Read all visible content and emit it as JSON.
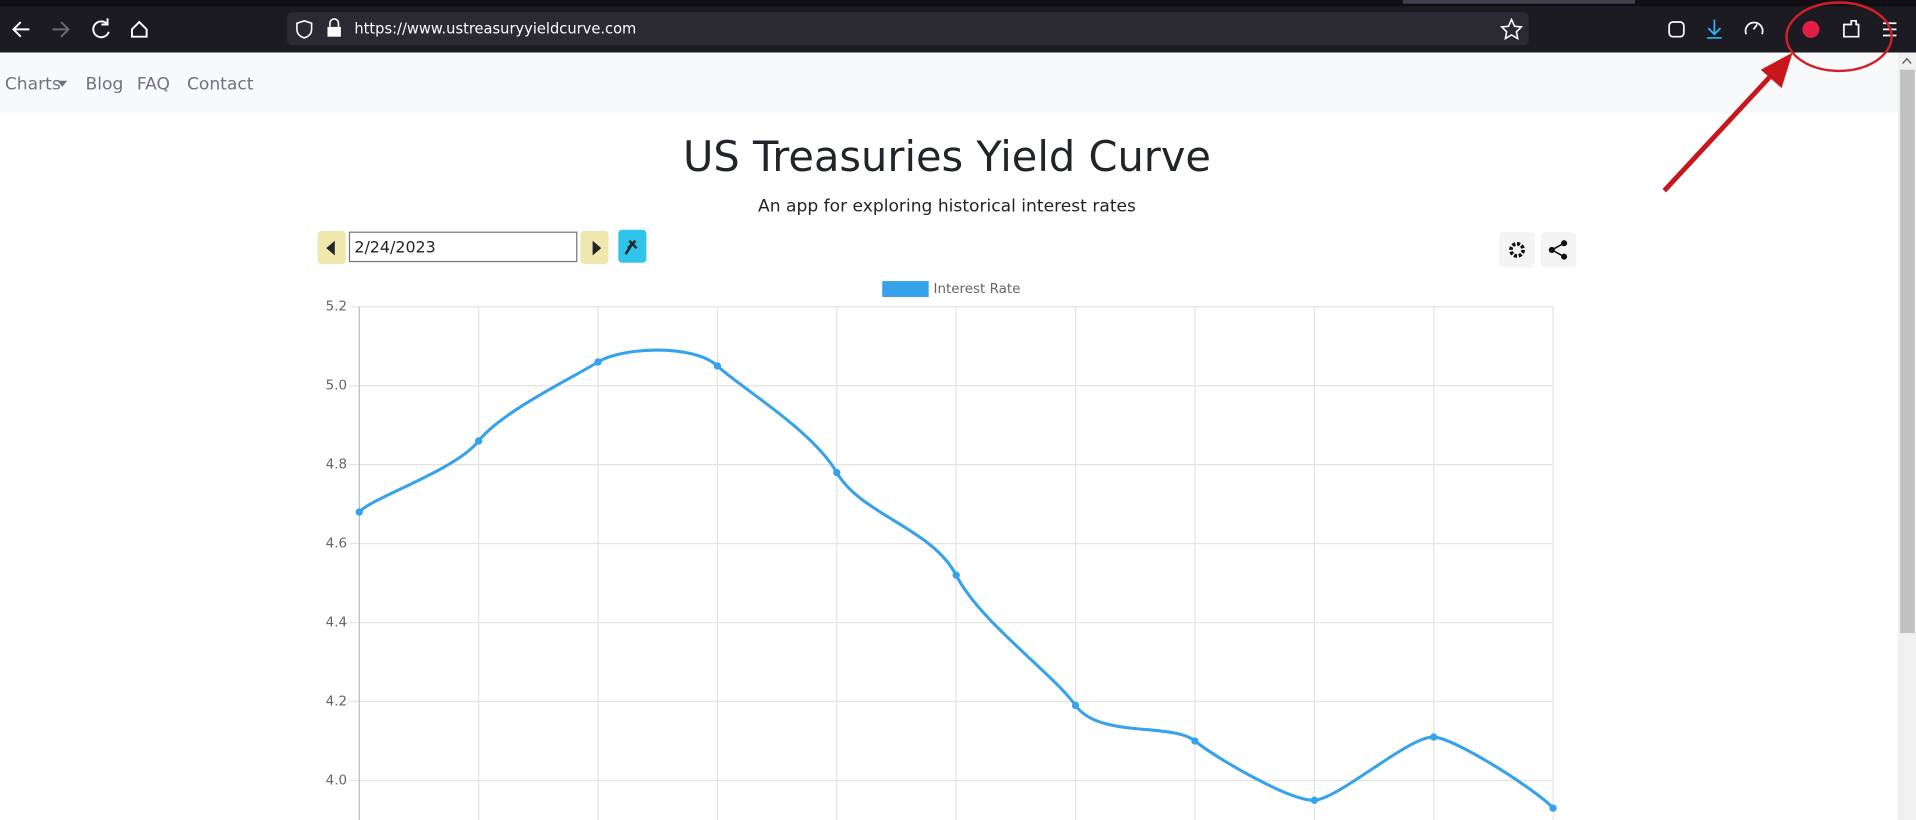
{
  "browser": {
    "url": "https://www.ustreasuryyieldcurve.com"
  },
  "nav": {
    "items": [
      "Charts",
      "Blog",
      "FAQ",
      "Contact"
    ]
  },
  "header": {
    "title": "US Treasuries Yield Curve",
    "subtitle": "An app for exploring historical interest rates"
  },
  "controls": {
    "date": "2/24/2023"
  },
  "chart_data": {
    "type": "line",
    "categories": [
      null,
      null,
      null,
      null,
      null,
      null,
      null,
      null,
      null,
      null,
      null
    ],
    "series": [
      {
        "name": "Interest Rate",
        "color": "#36a2eb",
        "values": [
          4.68,
          4.86,
          5.06,
          5.05,
          4.78,
          4.52,
          4.19,
          4.1,
          3.95,
          4.11,
          3.93
        ]
      }
    ],
    "ylim": [
      3.9,
      5.2
    ],
    "yticks": [
      {
        "value": 4,
        "label": "4.0"
      },
      4.2,
      4.4,
      4.6,
      4.8,
      {
        "value": 5,
        "label": "5.0"
      },
      5.2
    ],
    "grid": true
  }
}
